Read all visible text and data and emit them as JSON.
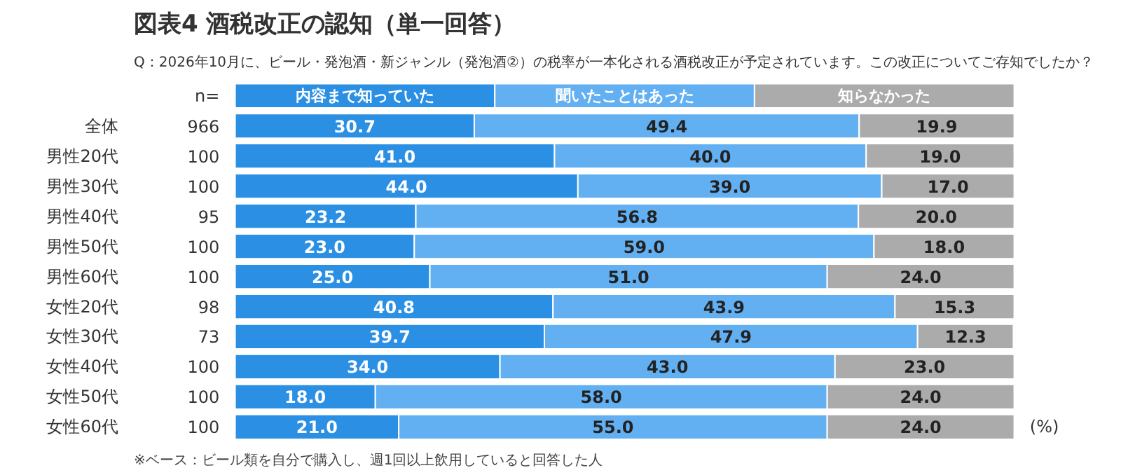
{
  "chart_data": {
    "type": "bar",
    "orientation": "horizontal",
    "stacked": true,
    "legend": "top",
    "grid": false,
    "tick_labels": "y",
    "title": "図表4 酒税改正の認知（単一回答）",
    "subtitle": "Q：2026年10月に、ビール・発泡酒・新ジャンル（発泡酒②）の税率が一本化される酒税改正が予定されています。この改正についてご存知でしたか？",
    "categories": [
      "全体",
      "男性20代",
      "男性30代",
      "男性40代",
      "男性50代",
      "男性60代",
      "女性20代",
      "女性30代",
      "女性40代",
      "女性50代",
      "女性60代"
    ],
    "y2_categories": [
      "966",
      "100",
      "100",
      "95",
      "100",
      "100",
      "98",
      "73",
      "100",
      "100",
      "100"
    ],
    "series": [
      {
        "name": "内容まで知っていた",
        "color": "#2b8fe3",
        "values": [
          30.7,
          41.0,
          44.0,
          23.2,
          23.0,
          25.0,
          40.8,
          39.7,
          34.0,
          18.0,
          21.0
        ],
        "value_labels": [
          "30.7",
          "41.0",
          "44.0",
          "23.2",
          "23.0",
          "25.0",
          "40.8",
          "39.7",
          "34.0",
          "18.0",
          "21.0"
        ]
      },
      {
        "name": "聞いたことはあった",
        "color": "#62b0f2",
        "values": [
          49.4,
          40.0,
          39.0,
          56.8,
          59.0,
          51.0,
          43.9,
          47.9,
          43.0,
          58.0,
          55.0
        ],
        "value_labels": [
          "49.4",
          "40.0",
          "39.0",
          "56.8",
          "59.0",
          "51.0",
          "43.9",
          "47.9",
          "43.0",
          "58.0",
          "55.0"
        ]
      },
      {
        "name": "知らなかった",
        "color": "#ababab",
        "values": [
          19.9,
          19.0,
          17.0,
          20.0,
          18.0,
          24.0,
          15.3,
          12.3,
          23.0,
          24.0,
          24.0
        ],
        "value_labels": [
          "19.9",
          "19.0",
          "17.0",
          "20.0",
          "18.0",
          "24.0",
          "15.3",
          "12.3",
          "23.0",
          "24.0",
          "24.0"
        ]
      }
    ],
    "annotations": [
      "n=",
      "(%)",
      "※ベース：ビール類を自分で購入し、週1回以上飲用していると回答した人"
    ]
  }
}
